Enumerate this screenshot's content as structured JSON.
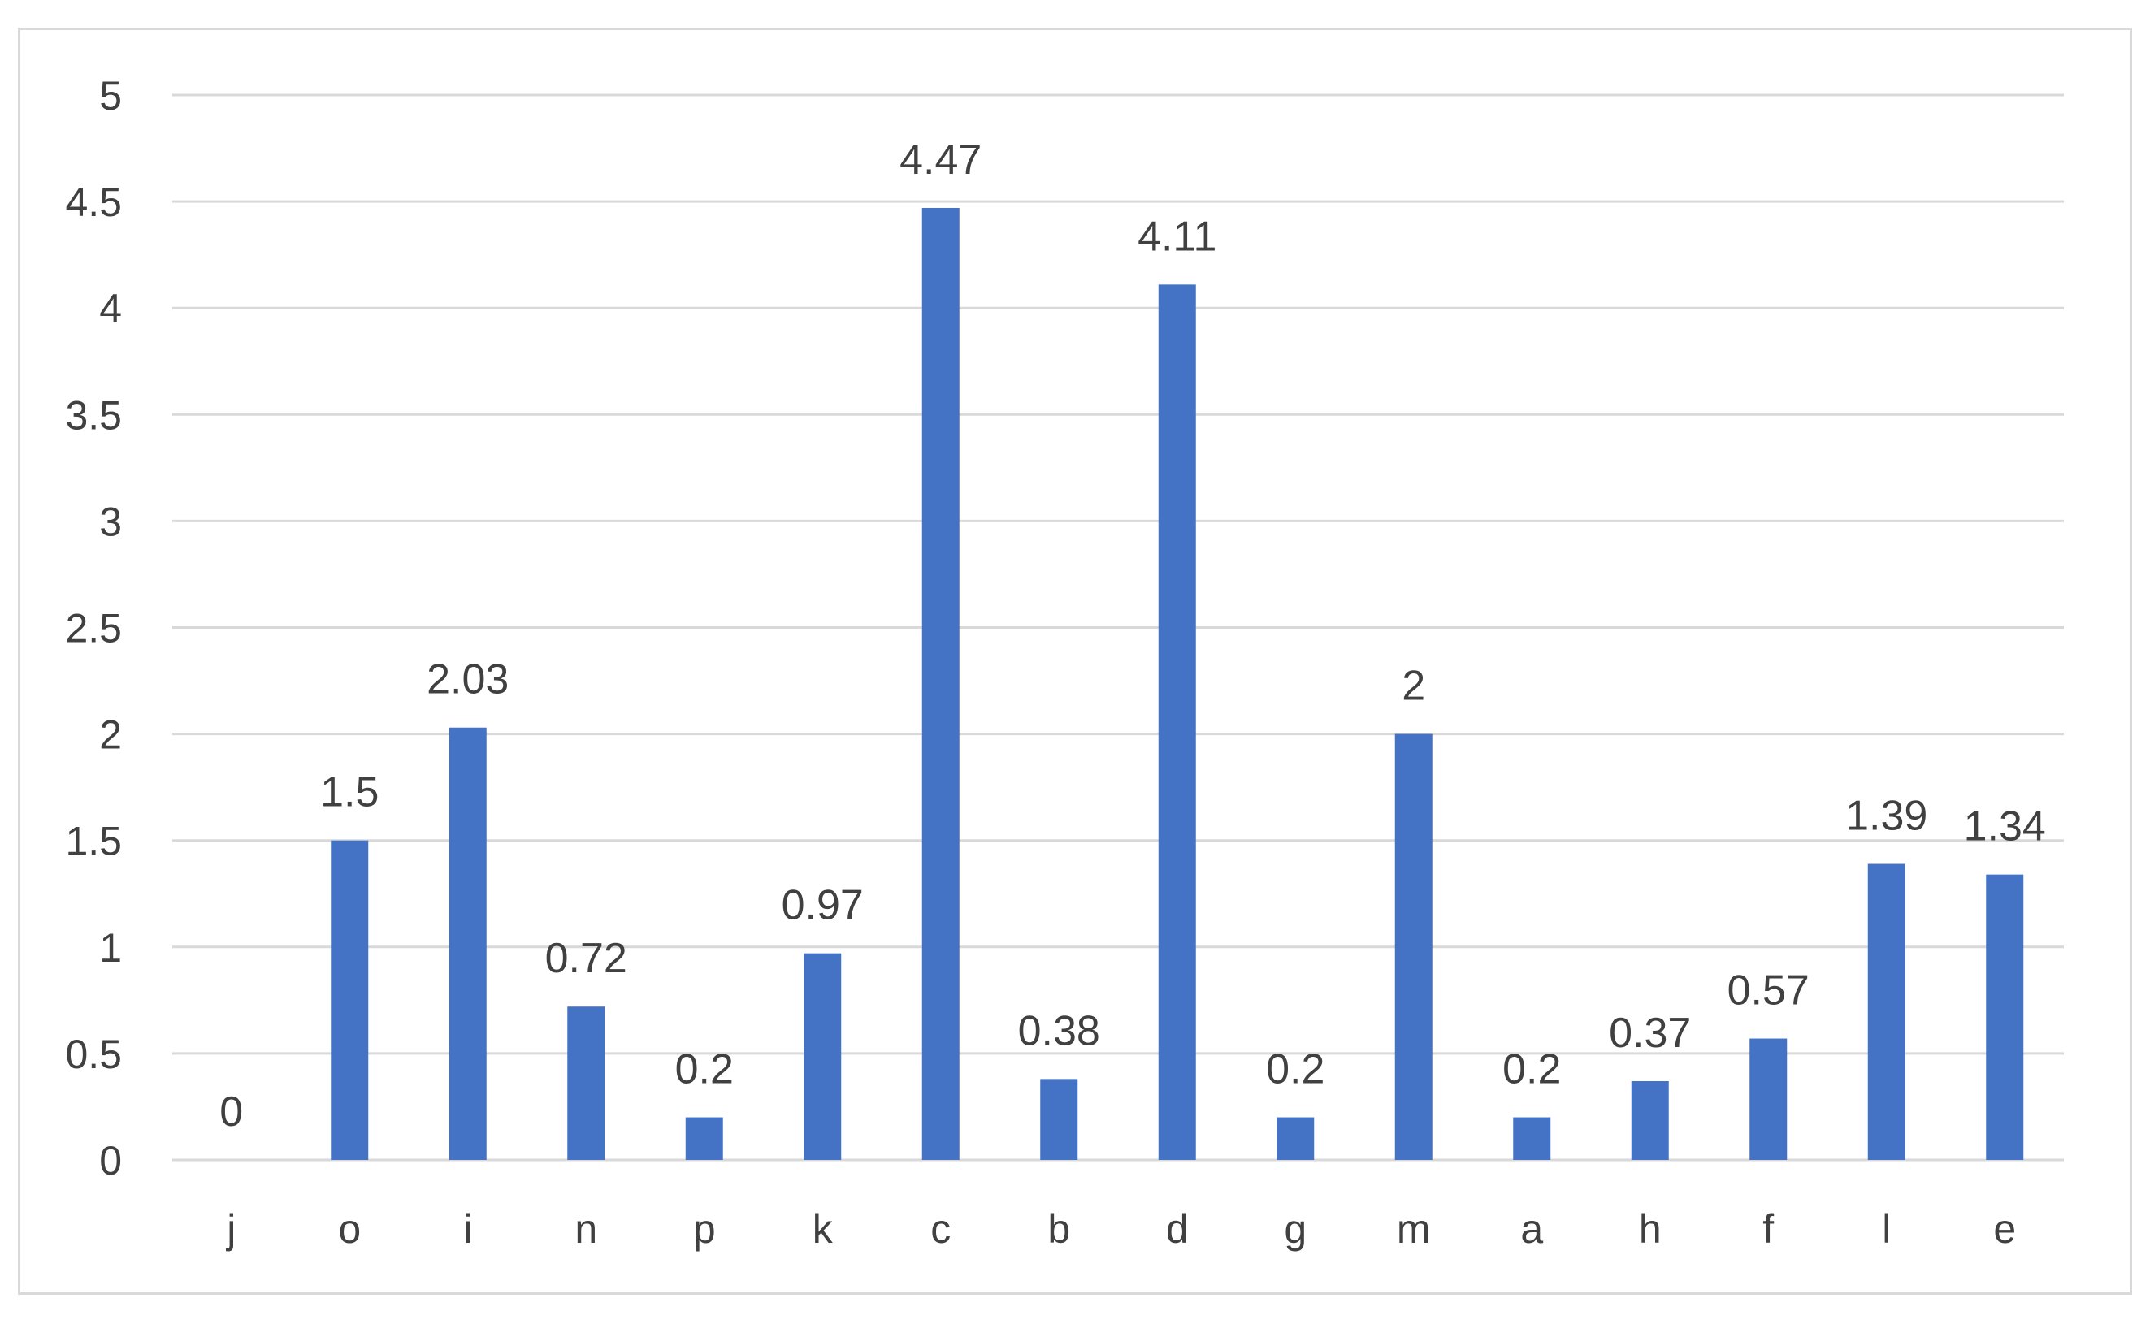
{
  "chart_data": {
    "type": "bar",
    "categories": [
      "j",
      "o",
      "i",
      "n",
      "p",
      "k",
      "c",
      "b",
      "d",
      "g",
      "m",
      "a",
      "h",
      "f",
      "l",
      "e"
    ],
    "values": [
      0,
      1.5,
      2.03,
      0.72,
      0.2,
      0.97,
      4.47,
      0.38,
      4.11,
      0.2,
      2,
      0.2,
      0.37,
      0.57,
      1.39,
      1.34
    ],
    "data_labels": [
      "0",
      "1.5",
      "2.03",
      "0.72",
      "0.2",
      "0.97",
      "4.47",
      "0.38",
      "4.11",
      "0.2",
      "2",
      "0.2",
      "0.37",
      "0.57",
      "1.39",
      "1.34"
    ],
    "ylim": [
      0,
      5
    ],
    "y_ticks": [
      "0",
      "0.5",
      "1",
      "1.5",
      "2",
      "2.5",
      "3",
      "3.5",
      "4",
      "4.5",
      "5"
    ],
    "title": "",
    "xlabel": "",
    "ylabel": "",
    "grid": "horizontal",
    "legend": "none",
    "bar_color": "#4472c4",
    "grid_color": "#d9d9d9",
    "text_color": "#404040"
  }
}
